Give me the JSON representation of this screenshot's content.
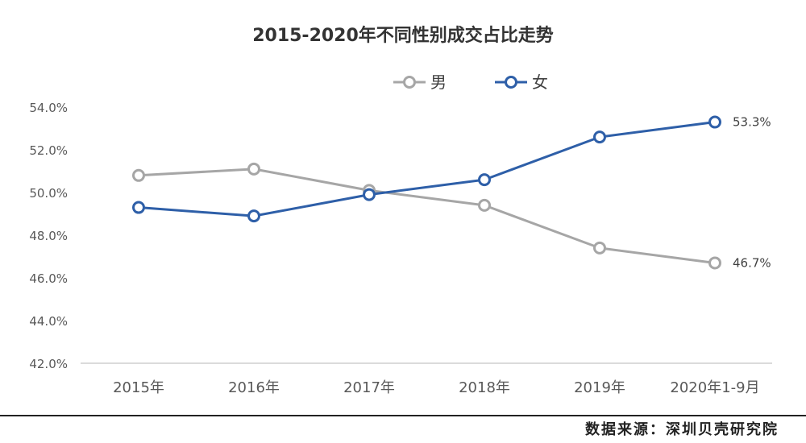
{
  "chart_data": {
    "type": "line",
    "title": "2015-2020年不同性别成交占比走势",
    "categories": [
      "2015年",
      "2016年",
      "2017年",
      "2018年",
      "2019年",
      "2020年1-9月"
    ],
    "series": [
      {
        "name": "男",
        "color": "#a6a6a6",
        "values": [
          50.8,
          51.1,
          50.1,
          49.4,
          47.4,
          46.7
        ]
      },
      {
        "name": "女",
        "color": "#2e5fa8",
        "values": [
          49.3,
          48.9,
          49.9,
          50.6,
          52.6,
          53.3
        ]
      }
    ],
    "data_labels": [
      {
        "series": 1,
        "index": 5,
        "text": "53.3%"
      },
      {
        "series": 0,
        "index": 5,
        "text": "46.7%"
      }
    ],
    "ylim": [
      42,
      54
    ],
    "yticks": [
      42,
      44,
      46,
      48,
      50,
      52,
      54
    ],
    "ytick_labels": [
      "42.0%",
      "44.0%",
      "46.0%",
      "48.0%",
      "50.0%",
      "52.0%",
      "54.0%"
    ],
    "xlabel": "",
    "ylabel": "",
    "grid": false,
    "legend_position": "top"
  },
  "source": "数据来源：深圳贝壳研究院"
}
